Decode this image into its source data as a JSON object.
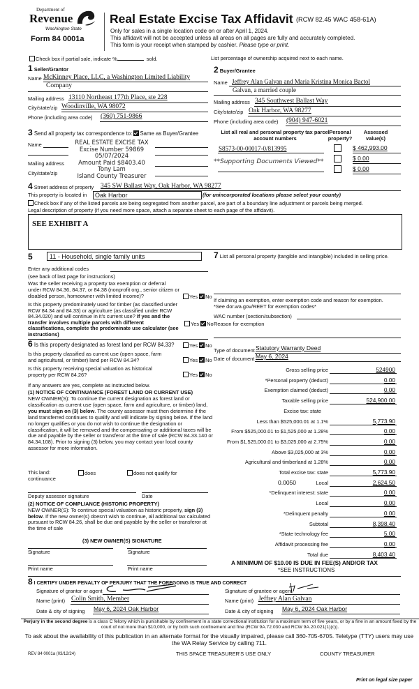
{
  "header": {
    "logo_dept": "Department of",
    "logo_name": "Revenue",
    "logo_state": "Washington State",
    "form_number": "Form 84 0001a",
    "title": "Real Estate Excise Tax Affidavit",
    "citation": "(RCW 82.45 WAC 458-61A)",
    "line1": "Only for sales in a single location code on or after April 1, 2024.",
    "line2": "This affidavit will not be accepted unless all areas on all pages are fully and accurately completed.",
    "line3": "This form is your receipt when stamped by cashier.",
    "line3_italic": "Please type or print."
  },
  "partial_sale": {
    "label": "Check box if partial sale, indicate %",
    "suffix": "sold.",
    "checked": false
  },
  "ownership_note": "List percentage of ownership acquired next to each name.",
  "seller": {
    "section_num": "1",
    "heading": "Seller/Grantor",
    "name_label": "Name",
    "name_line1": "McKinney Place, LLC, a Washington Limited Liability",
    "name_line2": "Company",
    "mailing_label": "Mailing address",
    "mailing": "13110 Northeast 177th Place, ste 228",
    "city_label": "City/state/zip",
    "city": "Woodinville, WA 98072",
    "phone_label": "Phone (including area code)",
    "phone": "(360) 751-9866"
  },
  "buyer": {
    "section_num": "2",
    "heading": "Buyer/Grantee",
    "name_label": "Name",
    "name_line1": "Jeffrey Alan Galvan and Maria Kristina Monica Bactol",
    "name_line2": "Galvan, a married couple",
    "mailing_label": "Mailing address",
    "mailing": "345 Southwest Ballast Way",
    "city_label": "City/state/zip",
    "city": "Oak Harbor, WA 98277",
    "phone_label": "Phone (including area code)",
    "phone": "(904) 947-6021"
  },
  "correspondence": {
    "section_num": "3",
    "label": "Send all property tax correspondence to:",
    "same_label": "Same as Buyer/Grantee",
    "same_checked": true,
    "name_label": "Name",
    "mailing_label": "Mailing address",
    "city_label": "City/state/zip",
    "stamp": [
      "REAL ESTATE EXCISE TAX",
      "Excise Number 59869",
      "05/07/2024",
      "Amount Paid $8403.40",
      "Tony Lam",
      "Island County Treasurer"
    ]
  },
  "parcels": {
    "header_col1": "List all real and personal property tax parcel account numbers",
    "header_col2": "Personal property?",
    "header_col3": "Assessed value(s)",
    "rows": [
      {
        "parcel": "S8573-00-00017-0/813995",
        "personal": false,
        "value": "$ 462,993.00"
      },
      {
        "parcel": "",
        "personal": false,
        "value": "$ 0.00"
      },
      {
        "parcel": "",
        "personal": false,
        "value": "$ 0.00"
      }
    ],
    "stamp_note": "**Supporting Documents Viewed**"
  },
  "property": {
    "section_num": "4",
    "street_label": "Street address of property",
    "street": "345 SW Ballast Way, Oak Harbor, WA 98277",
    "located_label": "This property is located in",
    "located": "Oak Harbor",
    "located_hint": "(for unincorporated locations please select your county)",
    "segregated_label": "Check box if any of the listed parcels are being segregated from another parcel, are part of a boundary line adjustment or parcels being merged.",
    "legal_label": "Legal description of property (if you need more space, attach a separate sheet to each page of the affidavit).",
    "legal": "SEE EXHIBIT A"
  },
  "section5": {
    "section_num": "5",
    "use_code": "11 - Household, single family units",
    "additional_codes_label": "Enter any additional codes",
    "see_back": "(see back of last page for instructions)",
    "q_exemption": "Was the seller receiving a property tax exemption or deferral under RCW 84.36, 84.37, or 84.38 (nonprofit org., senior citizen or disabled person, homeowner with limited income)?",
    "q_timber": "Is this property predominately used for timber (as classified under RCW 84.34 and 84.33) or agriculture (as classified under RCW 84.34.020) and will continue in it's current use?",
    "q_timber_bold": "If yes and the transfer involves multiple parcels with different classifications, complete the predominate use calculator (see instructions)",
    "yes": "Yes",
    "no": "No"
  },
  "section6": {
    "section_num": "6",
    "q_forest": "Is this property designated as forest land per RCW 84.33?",
    "q_current_use": "Is this property classified as current use (open space, farm and agricultural, or timber) land per RCW 84.34?",
    "q_historic": "Is this property receiving special valuation as historical property per RCW 84.26?",
    "if_yes": "If any answers are yes, complete as instructed below.",
    "notice1_title": "(1) NOTICE OF CONTINUANCE (FOREST LAND OR CURRENT USE)",
    "notice1_a": "NEW OWNER(S): To continue the current designation as forest land or classification as current use (open space, farm and agriculture, or timber) land,",
    "notice1_bold": "you must sign on (3) below",
    "notice1_b": ". The county assessor must then determine if the land transferred continues to qualify and will indicate by signing below. If the land no longer qualifies or you do not wish to continue the designation or classification, it will be removed and the compensating or additional taxes will be due and payable by the seller or transferor at the time of sale (RCW 84.33.140 or 84.34.108). Prior to signing (3) below, you may contact your local county assessor for more information.",
    "this_land": "This land:",
    "continuance": "continuance",
    "does": "does",
    "does_not": "does not qualify for",
    "deputy_sig": "Deputy assessor signature",
    "date": "Date",
    "notice2_title": "(2) NOTICE OF COMPLIANCE (HISTORIC PROPERTY)",
    "notice2_a": "NEW OWNER(S): To continue special valuation as historic property,",
    "notice2_bold": "sign (3) below",
    "notice2_b": ". If the new owner(s) doesn't wish to continue, all additional tax calculated pursuant to RCW 84.26, shall be due and payable by the seller or transferor at the time of sale",
    "new_owner_sig": "(3) NEW OWNER(S) SIGNATURE",
    "signature": "Signature",
    "print_name": "Print name"
  },
  "section7": {
    "section_num": "7",
    "label": "List all personal property (tangible and intangible) included in selling price.",
    "exemption_note": "If claiming an exemption, enter exemption code and reason for exemption. *See dor.wa.gov/REET for exemption codes*",
    "wac_label": "WAC number (section/subsection)",
    "reason_label": "Reason for exemption",
    "doc_type_label": "Type of document",
    "doc_type": "Statutory Warranty Deed",
    "doc_date_label": "Date of document",
    "doc_date": "May 6, 2024"
  },
  "fees": [
    {
      "label": "Gross selling price",
      "value": "524900"
    },
    {
      "label": "*Personal property (deduct)",
      "value": "0.00"
    },
    {
      "label": "Exemption claimed (deduct)",
      "value": "0.00"
    },
    {
      "label": "Taxable selling price",
      "value": "524,900.00"
    },
    {
      "label": "Excise tax: state",
      "value": ""
    },
    {
      "label": "Less than $525,000.01 at 1.1%",
      "value": "5,773.90"
    },
    {
      "label": "From $525,000.01 to $1,525,000 at 1.28%",
      "value": "0.00"
    },
    {
      "label": "From $1,525,000.01 to $3,025,000 at 2.75%",
      "value": "0.00"
    },
    {
      "label": "Above $3,025,000 at 3%",
      "value": "0.00"
    },
    {
      "label": "Agricultural and timberland at 1.28%",
      "value": "0.00"
    },
    {
      "label": "Total excise tax: state",
      "value": "5,773.90"
    },
    {
      "label": "Local",
      "value": "2,624.50",
      "rate": "0.0050"
    },
    {
      "label": "*Delinquent interest: state",
      "value": "0.00"
    },
    {
      "label": "Local",
      "value": "0.00"
    },
    {
      "label": "*Delinquent penalty",
      "value": "0.00"
    },
    {
      "label": "Subtotal",
      "value": "8,398.40"
    },
    {
      "label": "*State technology fee",
      "value": "5.00"
    },
    {
      "label": "Affidavit processing fee",
      "value": "0.00"
    },
    {
      "label": "Total due",
      "value": "8,403.40"
    }
  ],
  "minimum_note": "A MINIMUM OF $10.00 IS DUE IN FEE(S) AND/OR TAX",
  "see_instructions": "*SEE INSTRUCTIONS",
  "section8": {
    "section_num": "8",
    "heading": "I CERTIFY UNDER PENALTY OF PERJURY THAT THE FOREGOING IS TRUE AND CORRECT",
    "grantor_sig_label": "Signature of grantor or agent",
    "grantee_sig_label": "Signature of grantee or agent",
    "name_label": "Name (print)",
    "grantor_name": "Colin Smith, Member",
    "grantee_name": "Jeffrey Alan Galvan",
    "date_label": "Date & city of signing",
    "grantor_date": "May 6, 2024 Oak Harbor",
    "grantee_date": "May 6, 2024 Oak Harbor"
  },
  "footer": {
    "perjury_bold": "Perjury in the second degree",
    "perjury": " is a class C felony which is punishable by confinement in a state correctional institution for a maximum term of five years, or by a fine in an amount fixed by the court of not more than $10,000, or by both such confinement and fine (RCW 9A.72.030 and RCW 9A.20.021(1)(c)).",
    "accessibility": "To ask about the availability of this publication in an alternate format for the visually impaired, please call 360-705-6705. Teletype (TTY) users may use the WA Relay Service by calling 711.",
    "rev": "REV 84 0001a (03/12/24)",
    "treasurer_use": "THIS SPACE TREASURER'S USE ONLY",
    "county_treasurer": "COUNTY TREASURER",
    "legal_paper": "Print on legal size paper"
  }
}
